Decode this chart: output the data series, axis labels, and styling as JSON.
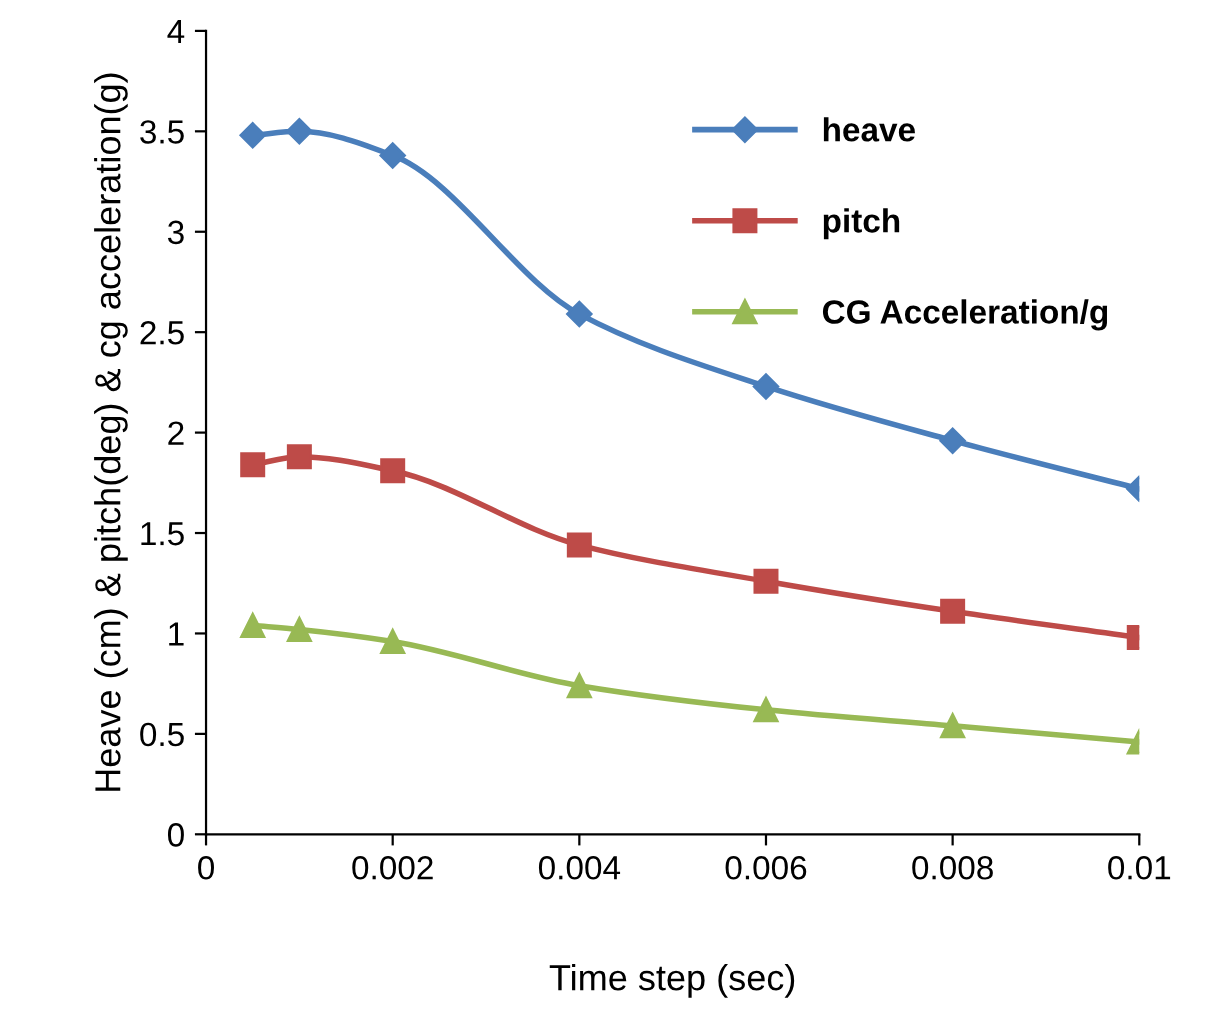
{
  "chart_data": {
    "type": "line",
    "xlabel": "Time step (sec)",
    "ylabel": "Heave (cm) & pitch(deg) & cg acceleration(g)",
    "x": [
      0.0005,
      0.001,
      0.002,
      0.004,
      0.006,
      0.008,
      0.01
    ],
    "series": [
      {
        "name": "heave",
        "color": "#4a7ebb",
        "marker": "diamond",
        "values": [
          3.48,
          3.5,
          3.38,
          2.59,
          2.23,
          1.96,
          1.72
        ]
      },
      {
        "name": "pitch",
        "color": "#be4b48",
        "marker": "square",
        "values": [
          1.84,
          1.88,
          1.81,
          1.44,
          1.26,
          1.11,
          0.98
        ]
      },
      {
        "name": "CG Acceleration/g",
        "color": "#98b954",
        "marker": "triangle",
        "values": [
          1.04,
          1.02,
          0.96,
          0.74,
          0.62,
          0.54,
          0.46
        ]
      }
    ],
    "xlim": [
      0,
      0.01
    ],
    "xticks": [
      0,
      0.002,
      0.004,
      0.006,
      0.008,
      0.01
    ],
    "ylim": [
      0,
      4
    ],
    "yticks": [
      0,
      0.5,
      1,
      1.5,
      2,
      2.5,
      3,
      3.5,
      4
    ],
    "grid": false,
    "legend": "top right",
    "line_style": "solid"
  }
}
